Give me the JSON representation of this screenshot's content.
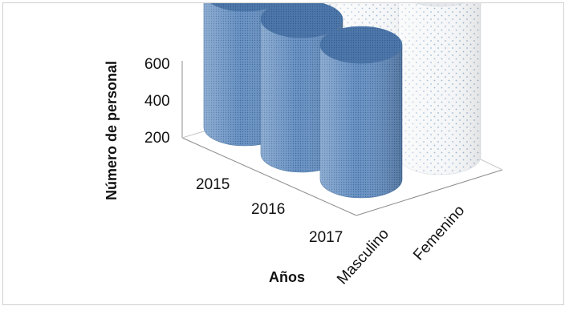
{
  "chart_data": {
    "type": "bar",
    "shape": "3d-cylinder",
    "title": "",
    "xlabel": "Años",
    "ylabel": "Número de personal",
    "depth_categories": [
      "Masculino",
      "Femenino"
    ],
    "categories": [
      "2015",
      "2016",
      "2017"
    ],
    "yticks": [
      "200",
      "400",
      "600"
    ],
    "ylim": [
      200,
      600
    ],
    "grid": false,
    "series": [
      {
        "name": "Masculino",
        "values": [
          480,
          480,
          480
        ],
        "color": "#5b86bb",
        "pattern": "dense-dots"
      },
      {
        "name": "Femenino",
        "values": [
          600,
          600,
          600
        ],
        "color": "#f2f4f6",
        "pattern": "sparse-blue-dots"
      }
    ]
  }
}
